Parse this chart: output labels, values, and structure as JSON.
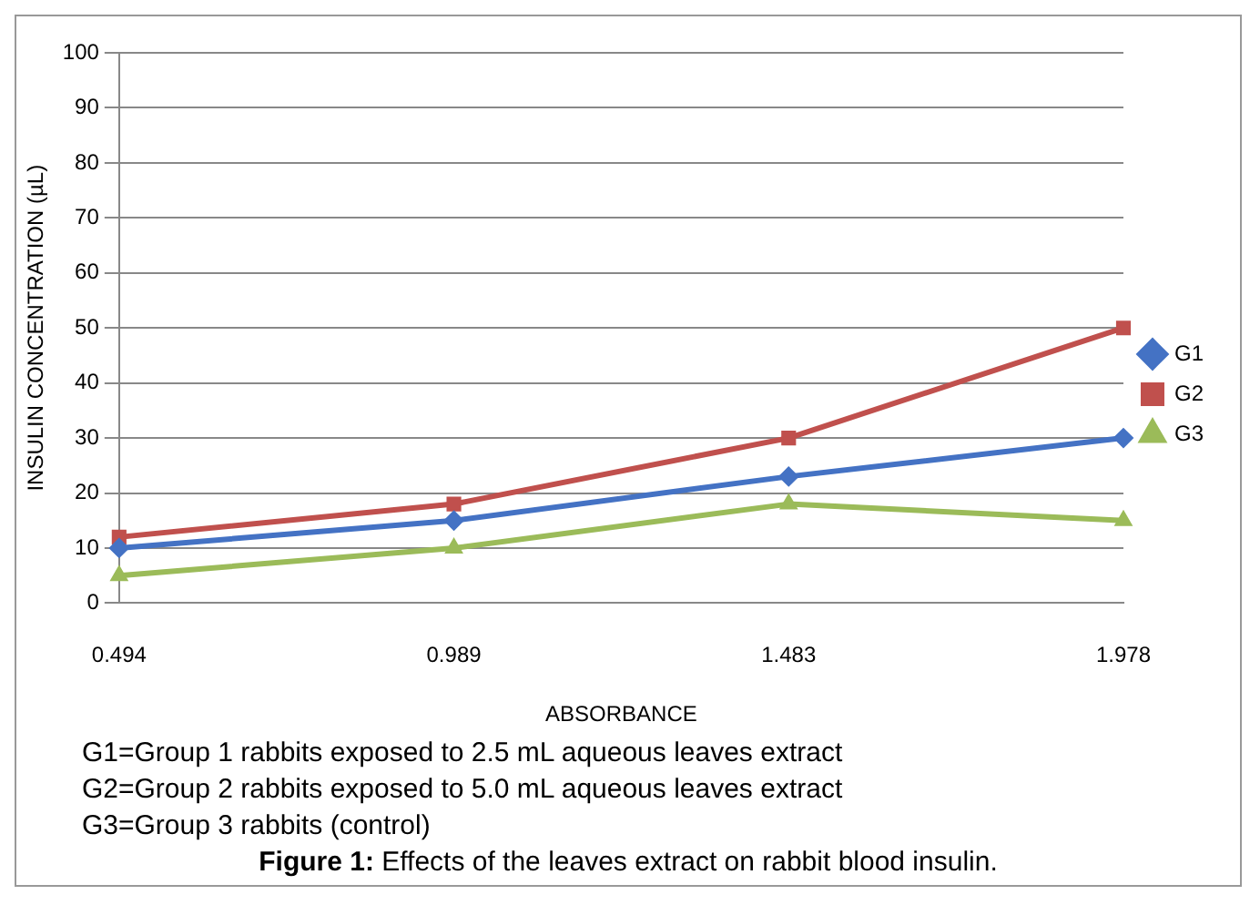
{
  "chart_data": {
    "type": "line",
    "xlabel": "ABSORBANCE",
    "ylabel": "INSULIN CONCENTRATION (µL)",
    "categories": [
      "0.494",
      "0.989",
      "1.483",
      "1.978"
    ],
    "series": [
      {
        "name": "G1",
        "color": "#4472c4",
        "marker": "diamond",
        "values": [
          10,
          15,
          23,
          30
        ]
      },
      {
        "name": "G2",
        "color": "#c0504d",
        "marker": "square",
        "values": [
          12,
          18,
          30,
          50
        ]
      },
      {
        "name": "G3",
        "color": "#9bbb59",
        "marker": "triangle",
        "values": [
          5,
          10,
          18,
          15
        ]
      }
    ],
    "ylim": [
      0,
      100
    ],
    "yticks": [
      0,
      10,
      20,
      30,
      40,
      50,
      60,
      70,
      80,
      90,
      100
    ],
    "grid": "y",
    "legend": "right",
    "line_style": "solid",
    "annotations": [
      "G1=Group 1 rabbits exposed to 2.5 mL aqueous leaves extract",
      "G2=Group 2 rabbits exposed to 5.0 mL aqueous leaves extract",
      "G3=Group 3 rabbits (control)",
      "Figure 1: Effects of the leaves extract on rabbit blood insulin."
    ]
  }
}
